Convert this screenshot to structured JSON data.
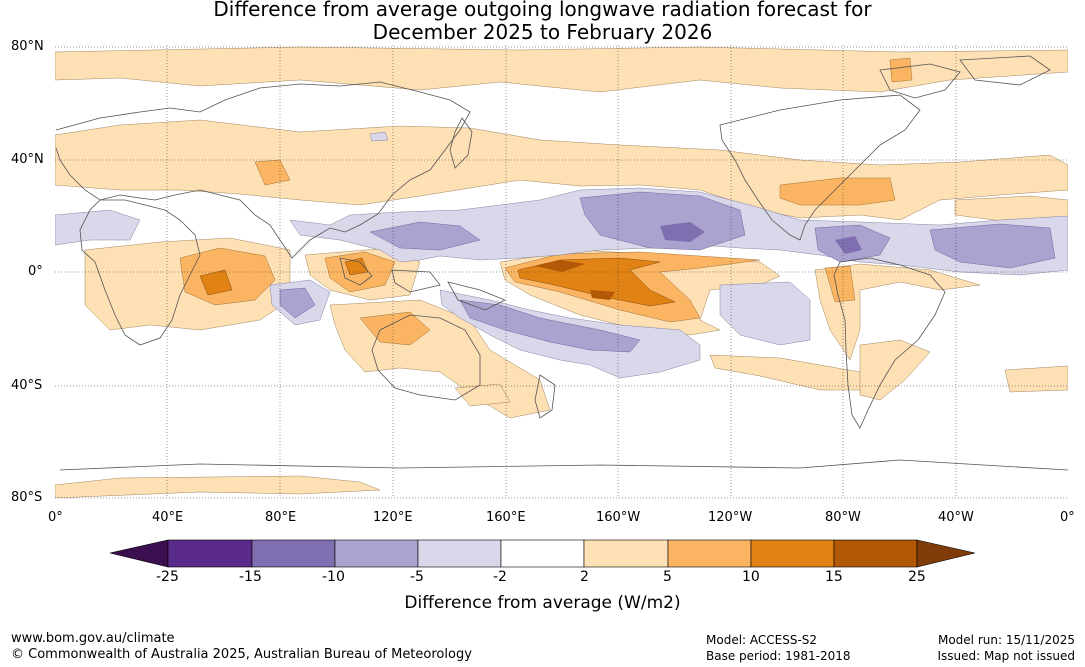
{
  "title": {
    "line1": "Difference from average outgoing longwave radiation forecast for",
    "line2": "December 2025 to February 2026"
  },
  "map": {
    "lat_labels": [
      "80°N",
      "40°N",
      "0°",
      "40°S",
      "80°S"
    ],
    "lon_labels": [
      "0°",
      "40°E",
      "80°E",
      "120°E",
      "160°E",
      "160°W",
      "120°W",
      "80°W",
      "40°W",
      "0°"
    ]
  },
  "legend": {
    "ticks": [
      "-25",
      "-15",
      "-10",
      "-5",
      "-2",
      "2",
      "5",
      "10",
      "15",
      "25"
    ],
    "colors": [
      "#3b0f4f",
      "#5a2b8a",
      "#7f6eb0",
      "#aaa3cf",
      "#d8d8ea",
      "#ffffff",
      "#fde0b4",
      "#fbb462",
      "#e08214",
      "#b35806",
      "#7f3b08"
    ],
    "label": "Difference from average (W/m2)"
  },
  "footer": {
    "url": "www.bom.gov.au/climate",
    "copyright": "© Commonwealth of Australia 2025, Australian Bureau of Meteorology",
    "model": "Model: ACCESS-S2",
    "base_period": "Base period: 1981-2018",
    "model_run": "Model run: 15/11/2025",
    "issued": "Issued: Map not issued"
  }
}
